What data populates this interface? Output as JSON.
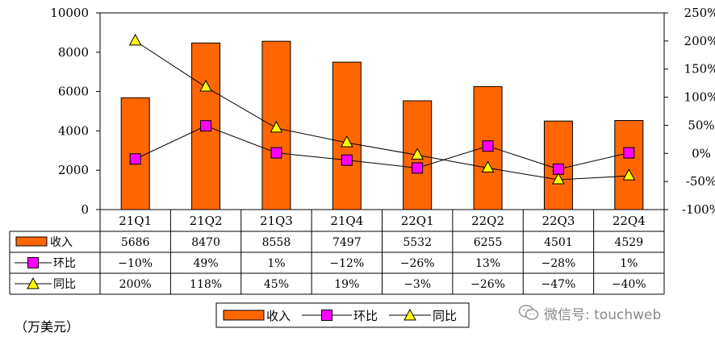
{
  "chart_data": {
    "type": "bar",
    "categories": [
      "21Q1",
      "21Q2",
      "21Q3",
      "21Q4",
      "22Q1",
      "22Q2",
      "22Q3",
      "22Q4"
    ],
    "unit_label": "（万美元）",
    "y_left": {
      "min": 0,
      "max": 10000,
      "ticks": [
        "0",
        "2000",
        "4000",
        "6000",
        "8000",
        "10000"
      ]
    },
    "y_right": {
      "min": -100,
      "max": 250,
      "ticks": [
        "-100%",
        "-50%",
        "0%",
        "50%",
        "100%",
        "150%",
        "200%",
        "250%"
      ]
    },
    "series": [
      {
        "name": "收入",
        "kind": "bar",
        "axis": "left",
        "color": "#FF6600",
        "values": [
          5686,
          8470,
          8558,
          7497,
          5532,
          6255,
          4501,
          4529
        ],
        "labels": [
          "5686",
          "8470",
          "8558",
          "7497",
          "5532",
          "6255",
          "4501",
          "4529"
        ]
      },
      {
        "name": "环比",
        "kind": "line",
        "axis": "right",
        "marker": "square",
        "color": "#FF00FF",
        "values": [
          -10,
          49,
          1,
          -12,
          -26,
          13,
          -28,
          1
        ],
        "labels": [
          "−10%",
          "49%",
          "1%",
          "−12%",
          "−26%",
          "13%",
          "−28%",
          "1%"
        ]
      },
      {
        "name": "同比",
        "kind": "line",
        "axis": "right",
        "marker": "triangle",
        "color": "#FFFF00",
        "values": [
          200,
          118,
          45,
          19,
          -3,
          -26,
          -47,
          -40
        ],
        "labels": [
          "200%",
          "118%",
          "45%",
          "19%",
          "−3%",
          "−26%",
          "−47%",
          "−40%"
        ]
      }
    ],
    "legend_position": "bottom",
    "grid": false
  },
  "watermark": {
    "text": "微信号: touchweb",
    "icon": "wechat-icon"
  }
}
